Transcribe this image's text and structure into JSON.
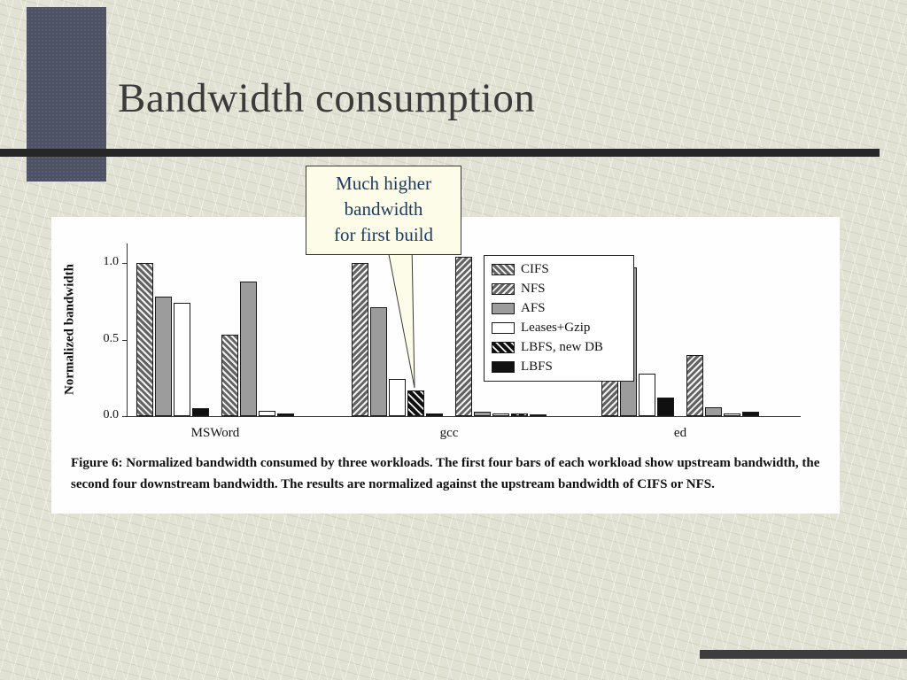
{
  "slide": {
    "title": "Bandwidth consumption",
    "callout": {
      "lines": [
        "Much higher",
        "bandwidth",
        "for first build"
      ]
    },
    "caption": "Figure 6: Normalized bandwidth consumed by three workloads. The first four bars of each workload show upstream bandwidth, the second four downstream bandwidth. The results are normalized against the upstream bandwidth of CIFS or NFS."
  },
  "chart_data": {
    "type": "bar",
    "title": "",
    "xlabel": "",
    "ylabel": "Normalized bandwidth",
    "ylim": [
      0,
      1.13
    ],
    "yticks": [
      0.0,
      0.5,
      1.0
    ],
    "grid": false,
    "legend_position": "inside-top-right",
    "legend": [
      {
        "label": "CIFS",
        "pattern": "cifs"
      },
      {
        "label": "NFS",
        "pattern": "nfs"
      },
      {
        "label": "AFS",
        "pattern": "afs"
      },
      {
        "label": "Leases+Gzip",
        "pattern": "leases"
      },
      {
        "label": "LBFS, new DB",
        "pattern": "lbfsnew"
      },
      {
        "label": "LBFS",
        "pattern": "lbfs"
      }
    ],
    "groups": [
      {
        "label": "MSWord",
        "upstream": [
          {
            "series": "CIFS",
            "value": 1.0
          },
          {
            "series": "AFS",
            "value": 0.78
          },
          {
            "series": "Leases+Gzip",
            "value": 0.74
          },
          {
            "series": "LBFS",
            "value": 0.05
          }
        ],
        "downstream": [
          {
            "series": "CIFS",
            "value": 0.53
          },
          {
            "series": "AFS",
            "value": 0.88
          },
          {
            "series": "Leases+Gzip",
            "value": 0.035
          },
          {
            "series": "LBFS",
            "value": 0.015
          }
        ]
      },
      {
        "label": "gcc",
        "upstream": [
          {
            "series": "NFS",
            "value": 1.0
          },
          {
            "series": "AFS",
            "value": 0.71
          },
          {
            "series": "Leases+Gzip",
            "value": 0.24
          },
          {
            "series": "LBFS, new DB",
            "value": 0.17
          },
          {
            "series": "LBFS",
            "value": 0.02
          }
        ],
        "downstream": [
          {
            "series": "NFS",
            "value": 1.04
          },
          {
            "series": "AFS",
            "value": 0.03
          },
          {
            "series": "Leases+Gzip",
            "value": 0.015
          },
          {
            "series": "LBFS, new DB",
            "value": 0.02
          },
          {
            "series": "LBFS",
            "value": 0.01
          }
        ]
      },
      {
        "label": "ed",
        "upstream": [
          {
            "series": "NFS",
            "value": 1.0
          },
          {
            "series": "AFS",
            "value": 0.97
          },
          {
            "series": "Leases+Gzip",
            "value": 0.28
          },
          {
            "series": "LBFS",
            "value": 0.12
          }
        ],
        "downstream": [
          {
            "series": "NFS",
            "value": 0.4
          },
          {
            "series": "AFS",
            "value": 0.06
          },
          {
            "series": "Leases+Gzip",
            "value": 0.02
          },
          {
            "series": "LBFS",
            "value": 0.03
          }
        ]
      }
    ],
    "annotation": {
      "text": "Much higher bandwidth for first build",
      "target": "gcc upstream LBFS, new DB bar"
    }
  }
}
